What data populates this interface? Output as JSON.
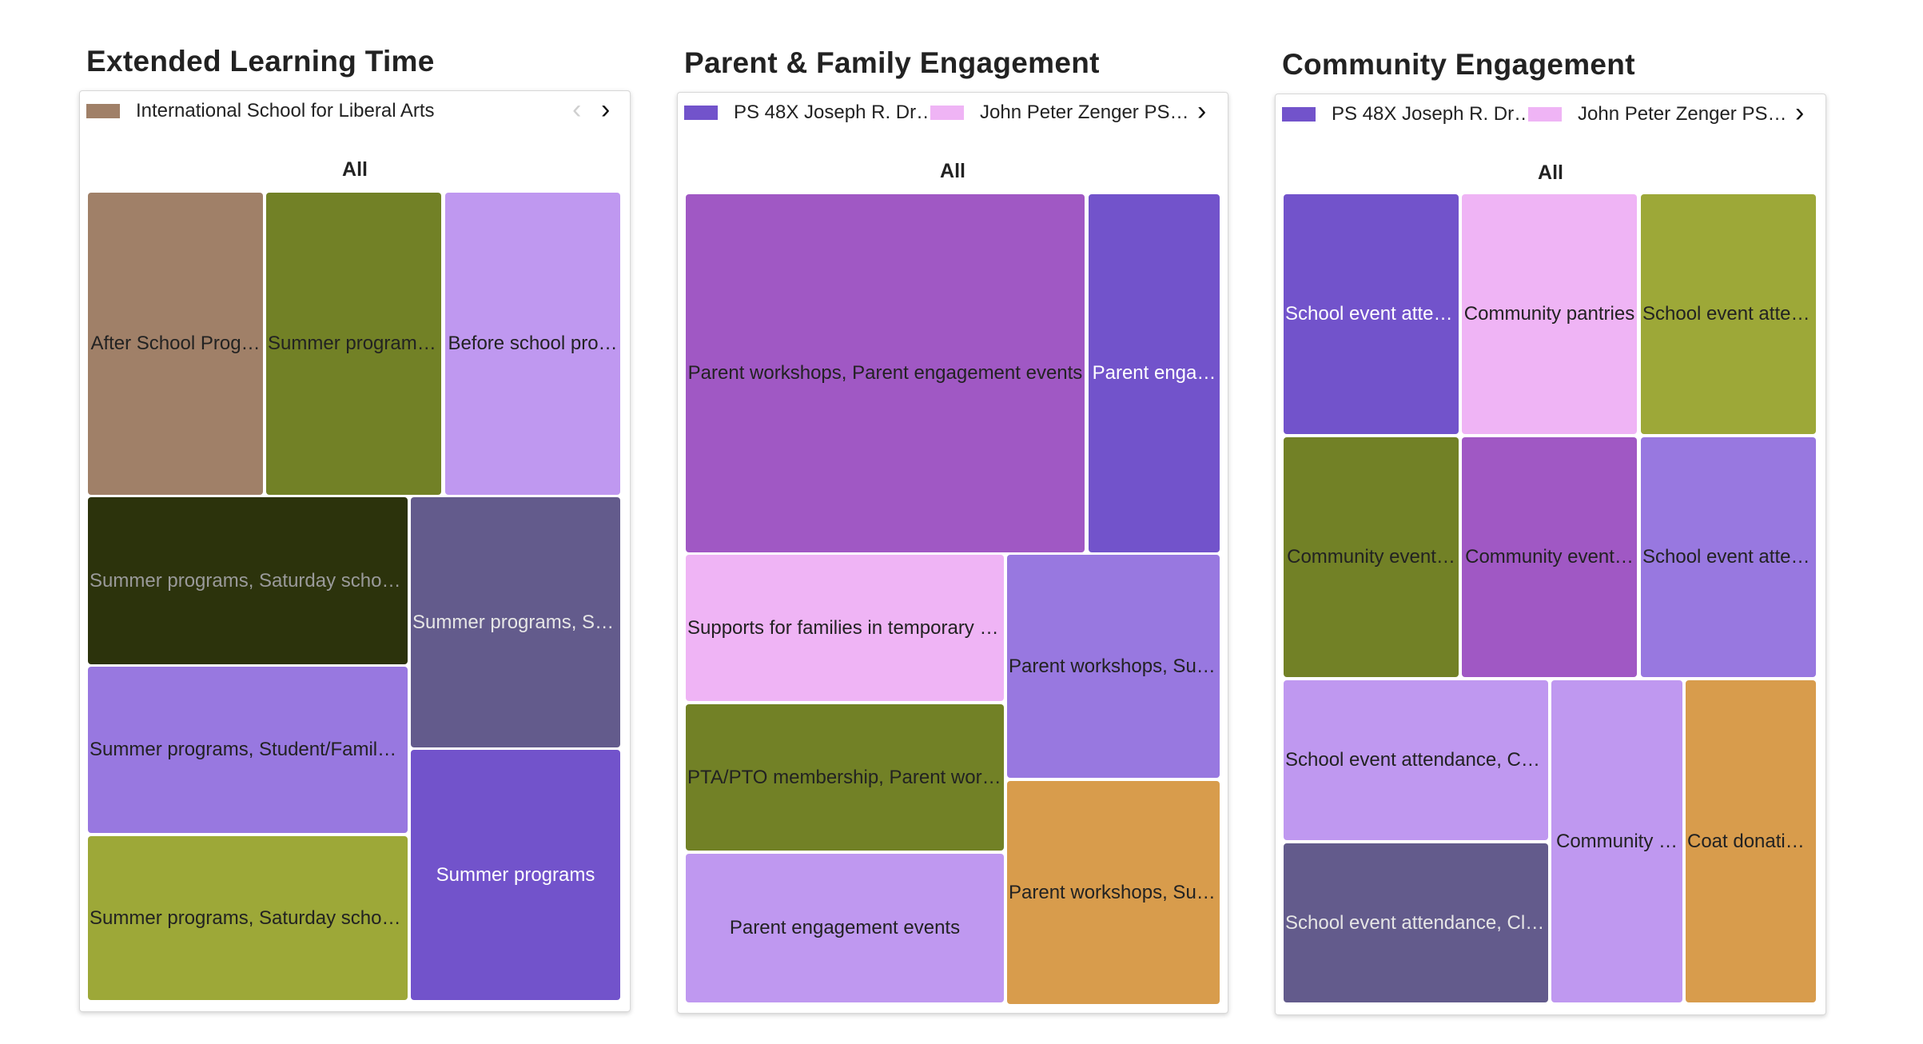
{
  "chart_data": [
    {
      "type": "treemap",
      "title": "Extended Learning Time",
      "root_label": "All",
      "legend": [
        {
          "label": "International School for Liberal Arts",
          "color": "#a08068"
        }
      ],
      "tiles": [
        {
          "label": "After School Prog…",
          "color": "#a08068",
          "text_color": "#222222"
        },
        {
          "label": "Summer programs…",
          "color": "#728126",
          "text_color": "#222222"
        },
        {
          "label": "Before school pro…",
          "color": "#bf98f0",
          "text_color": "#222222"
        },
        {
          "label": "Summer programs, Saturday school, …",
          "color": "#2c330c",
          "text_color": "#9a9a9a"
        },
        {
          "label": "Summer programs, Stu…",
          "color": "#635b8c",
          "text_color": "#e6e6e6"
        },
        {
          "label": "Summer programs, Student/Family s…",
          "color": "#9878e0",
          "text_color": "#222222"
        },
        {
          "label": "Summer programs",
          "color": "#7253cb",
          "text_color": "#ffffff"
        },
        {
          "label": "Summer programs, Saturday school, …",
          "color": "#9da838",
          "text_color": "#222222"
        }
      ]
    },
    {
      "type": "treemap",
      "title": "Parent & Family Engagement",
      "root_label": "All",
      "legend": [
        {
          "label": "PS 48X Joseph R. Dr…",
          "color": "#7253cb"
        },
        {
          "label": "John Peter Zenger PS…",
          "color": "#efb4f5"
        }
      ],
      "tiles": [
        {
          "label": "Parent workshops, Parent engagement events",
          "color": "#a058c4",
          "text_color": "#222222"
        },
        {
          "label": "Parent enga…",
          "color": "#7253cb",
          "text_color": "#ffffff"
        },
        {
          "label": "Supports for families in temporary h…",
          "color": "#efb4f5",
          "text_color": "#222222"
        },
        {
          "label": "Parent workshops, Sup…",
          "color": "#9878e0",
          "text_color": "#222222"
        },
        {
          "label": "PTA/PTO membership, Parent works…",
          "color": "#728126",
          "text_color": "#222222"
        },
        {
          "label": "Parent workshops, Sup…",
          "color": "#d89c4c",
          "text_color": "#222222"
        },
        {
          "label": "Parent engagement events",
          "color": "#bf98f0",
          "text_color": "#222222"
        }
      ]
    },
    {
      "type": "treemap",
      "title": "Community Engagement",
      "root_label": "All",
      "legend": [
        {
          "label": "PS 48X Joseph R. Dr…",
          "color": "#7253cb"
        },
        {
          "label": "John Peter Zenger PS…",
          "color": "#efb4f5"
        }
      ],
      "tiles": [
        {
          "label": "School event atten…",
          "color": "#7253cb",
          "text_color": "#ffffff"
        },
        {
          "label": "Community pantries",
          "color": "#efb4f5",
          "text_color": "#222222"
        },
        {
          "label": "School event atten…",
          "color": "#9da838",
          "text_color": "#222222"
        },
        {
          "label": "Community event…",
          "color": "#728126",
          "text_color": "#222222"
        },
        {
          "label": "Community event…",
          "color": "#a058c4",
          "text_color": "#222222"
        },
        {
          "label": "School event atten…",
          "color": "#9878e0",
          "text_color": "#222222"
        },
        {
          "label": "School event attendance, Com…",
          "color": "#bf98f0",
          "text_color": "#222222"
        },
        {
          "label": "Community …",
          "color": "#bf98f0",
          "text_color": "#222222"
        },
        {
          "label": "Coat donatio…",
          "color": "#d89c4c",
          "text_color": "#222222"
        },
        {
          "label": "School event attendance, Clot…",
          "color": "#635b8c",
          "text_color": "#e6e6e6"
        }
      ]
    }
  ]
}
